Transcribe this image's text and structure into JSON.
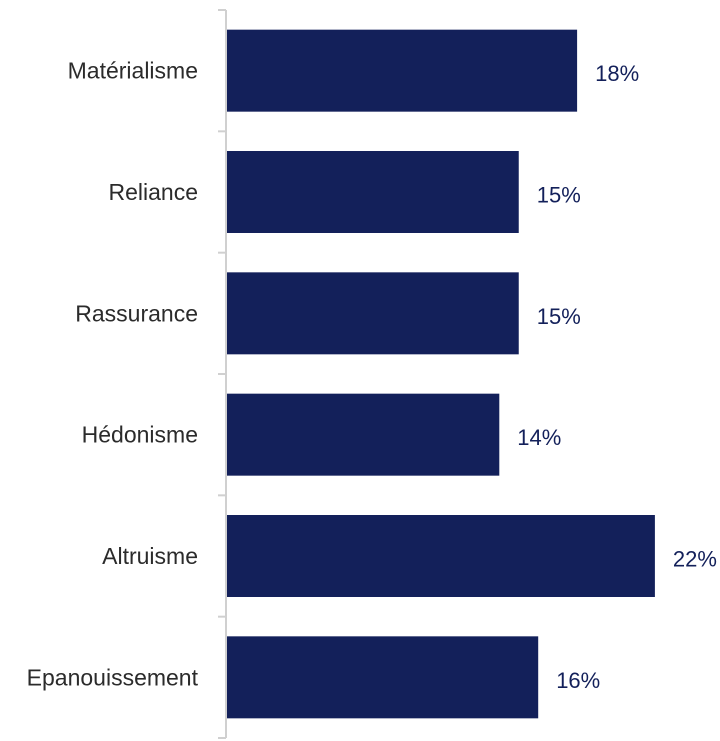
{
  "chart_data": {
    "type": "bar",
    "orientation": "horizontal",
    "categories": [
      "Matérialisme",
      "Reliance",
      "Rassurance",
      "Hédonisme",
      "Altruisme",
      "Epanouissement"
    ],
    "values": [
      18,
      15,
      15,
      14,
      22,
      16
    ],
    "value_labels": [
      "18%",
      "15%",
      "15%",
      "14%",
      "22%",
      "16%"
    ],
    "unit": "%",
    "xlim": [
      0,
      22
    ],
    "grid": false,
    "legend": "none",
    "bar_color": "#13205a"
  }
}
